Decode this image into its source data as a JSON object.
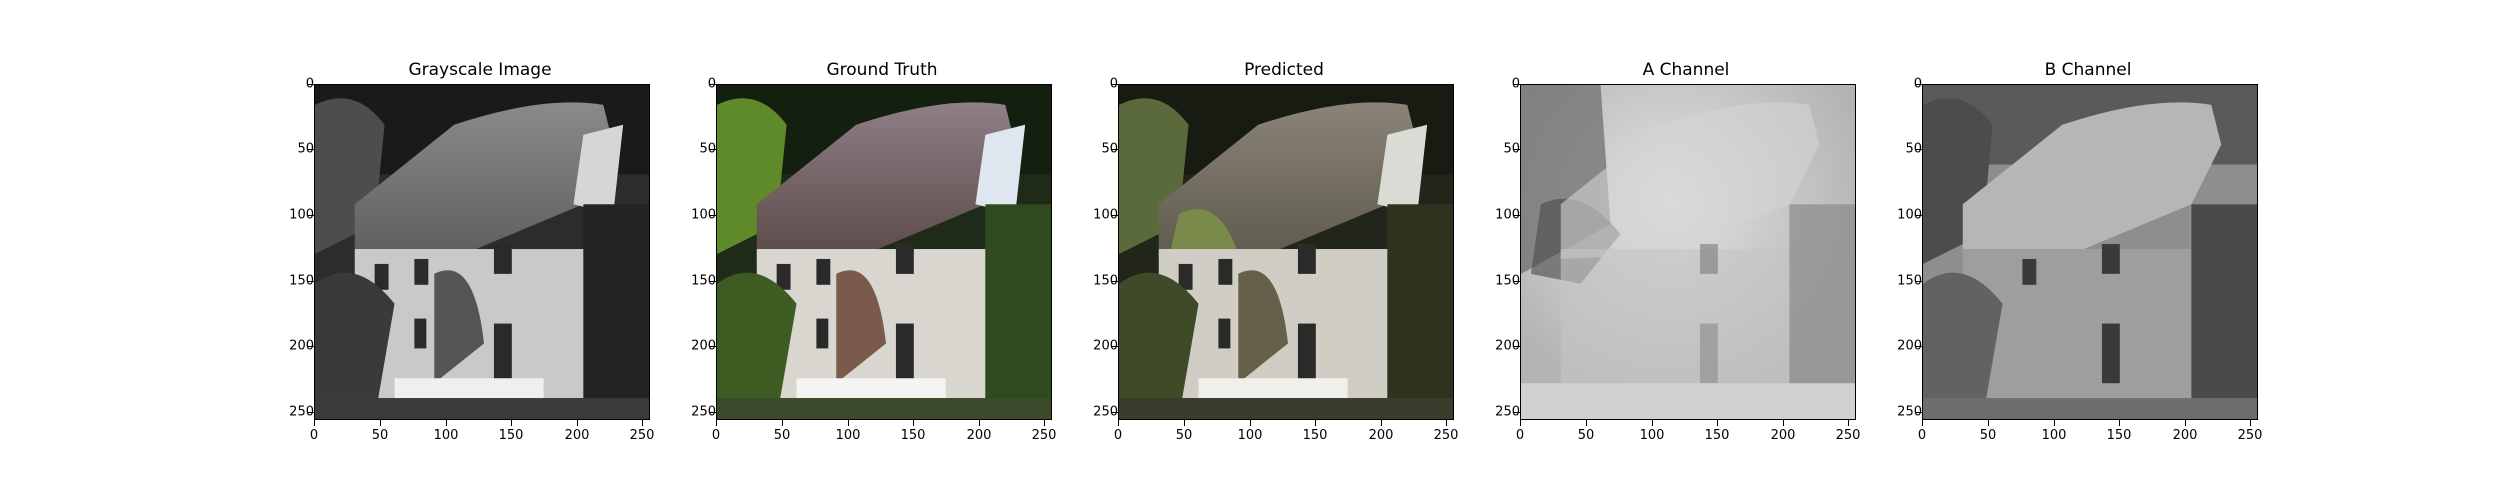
{
  "panels": [
    {
      "title": "Grayscale Image",
      "image": "grayscale-cottage",
      "tint": "gray"
    },
    {
      "title": "Ground Truth",
      "image": "color-cottage",
      "tint": "color"
    },
    {
      "title": "Predicted",
      "image": "predicted-cottage",
      "tint": "muted"
    },
    {
      "title": "A Channel",
      "image": "a-channel-map",
      "tint": "a"
    },
    {
      "title": "B Channel",
      "image": "b-channel-map",
      "tint": "b"
    }
  ],
  "axis": {
    "x_ticks": [
      "0",
      "50",
      "100",
      "150",
      "200",
      "250"
    ],
    "y_ticks": [
      "0",
      "50",
      "100",
      "150",
      "200",
      "250"
    ],
    "range": [
      0,
      256
    ]
  }
}
